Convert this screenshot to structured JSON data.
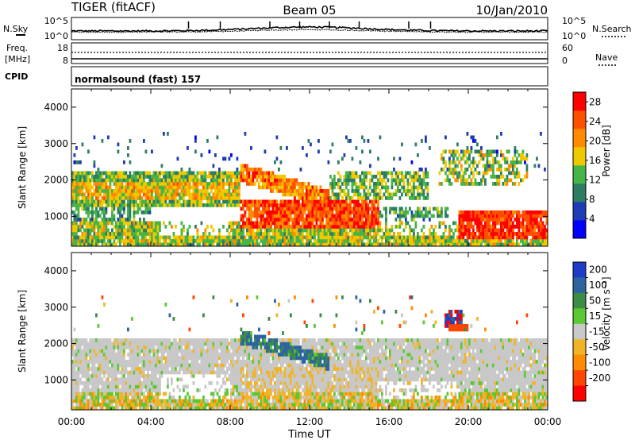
{
  "header": {
    "radar": "TIGER (fitACF)",
    "beam": "Beam 05",
    "date": "10/Jan/2010"
  },
  "status_panel": {
    "nsky_label": "N.Sky",
    "nsearch_label": "N.Search",
    "noise_ticks": [
      "10^5",
      "10^0"
    ],
    "freq_label_1": "Freq.",
    "freq_label_2": "[MHz]",
    "freq_ticks": [
      "18",
      "8"
    ],
    "nave_label": "Nave",
    "nave_ticks": [
      "60",
      "0"
    ],
    "cpid_label": "CPID",
    "cpid_value": "normalsound (fast) 157"
  },
  "chart_data": [
    {
      "type": "heatmap",
      "name": "power",
      "xlabel": "Time UT",
      "ylabel": "Slant Range [km]",
      "x_ticks": [
        "00:00",
        "04:00",
        "08:00",
        "12:00",
        "16:00",
        "20:00",
        "00:00"
      ],
      "y_ticks": [
        1000,
        2000,
        3000,
        4000
      ],
      "xlim_hours": [
        0,
        24
      ],
      "ylim_km": [
        180,
        4500
      ],
      "colorbar": {
        "label": "Power [dB]",
        "ticks": [
          4,
          8,
          12,
          16,
          20,
          24,
          28
        ],
        "range": [
          0,
          30
        ],
        "colors": [
          "#0000ff",
          "#1e3cb4",
          "#2d7d64",
          "#46b446",
          "#f0c800",
          "#ff8c00",
          "#ff5000",
          "#ff0000"
        ]
      },
      "features": [
        {
          "region": "near-range band",
          "time": [
            0,
            24
          ],
          "range_km": [
            250,
            900
          ],
          "power_db": 14
        },
        {
          "region": "main enhancement",
          "time": [
            8.5,
            15.5
          ],
          "range_km": [
            700,
            1500
          ],
          "power_db": 26
        },
        {
          "region": "evening enhancement",
          "time": [
            19.5,
            24
          ],
          "range_km": [
            400,
            1100
          ],
          "power_db": 27
        },
        {
          "region": "morning band",
          "time": [
            0,
            8
          ],
          "range_km": [
            1300,
            2200
          ],
          "power_db": 15
        }
      ]
    },
    {
      "type": "heatmap",
      "name": "velocity",
      "xlabel": "Time UT",
      "ylabel": "Slant Range [km]",
      "x_ticks": [
        "00:00",
        "04:00",
        "08:00",
        "12:00",
        "16:00",
        "20:00",
        "00:00"
      ],
      "y_ticks": [
        1000,
        2000,
        3000,
        4000
      ],
      "xlim_hours": [
        0,
        24
      ],
      "ylim_km": [
        180,
        4500
      ],
      "colorbar": {
        "label": "Velocity [m s⁻¹]",
        "ticks": [
          "200",
          "100",
          "50",
          "15",
          "-15",
          "-50",
          "-100",
          "-200"
        ],
        "colors": [
          "#1e3cc8",
          "#2d64a0",
          "#3c8c46",
          "#5ac832",
          "#c8c8c8",
          "#f0b428",
          "#ff8c00",
          "#ff4600",
          "#ff0000"
        ]
      },
      "features": [
        {
          "region": "ground scatter",
          "time": [
            0,
            24
          ],
          "range_km": [
            700,
            2100
          ],
          "velocity": 0
        },
        {
          "region": "near-range",
          "time": [
            0,
            24
          ],
          "range_km": [
            250,
            700
          ],
          "velocity": -40
        },
        {
          "region": "toward-radar arc",
          "time": [
            8.5,
            13
          ],
          "range_km": [
            1500,
            2300
          ],
          "velocity": 120
        },
        {
          "region": "dusk patch",
          "time": [
            18.8,
            19.7
          ],
          "range_km": [
            2500,
            2900
          ],
          "velocity": 200
        }
      ]
    }
  ]
}
